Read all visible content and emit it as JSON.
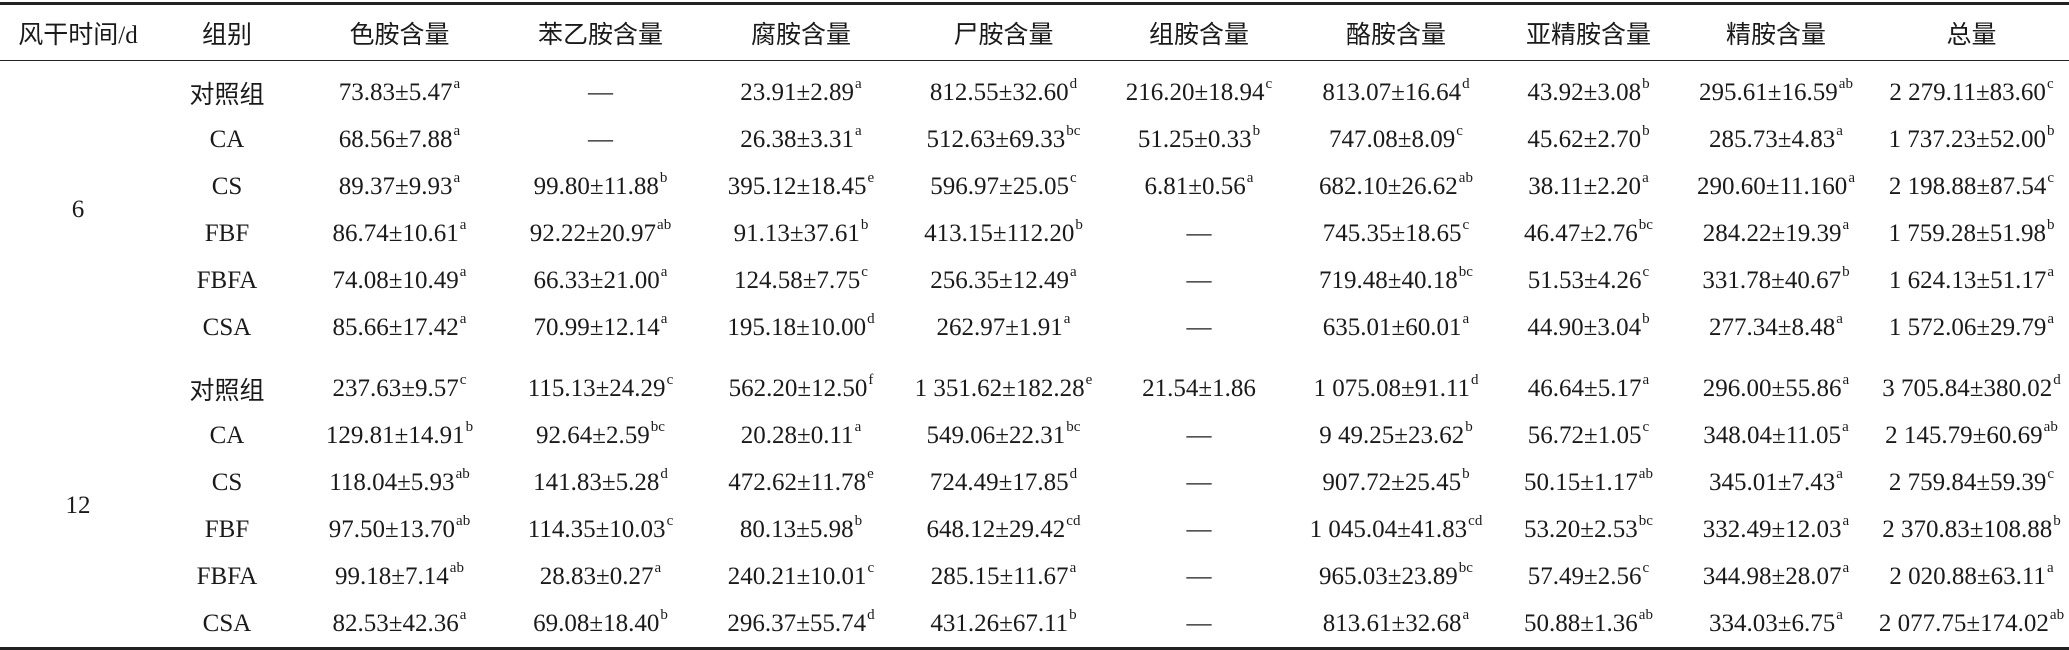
{
  "table": {
    "header": [
      "风干时间/d",
      "组别",
      "色胺含量",
      "苯乙胺含量",
      "腐胺含量",
      "尸胺含量",
      "组胺含量",
      "酪胺含量",
      "亚精胺含量",
      "精胺含量",
      "总量"
    ],
    "groups": [
      {
        "time": "6",
        "rows": [
          {
            "group": "对照组",
            "cells": [
              [
                "73.83±5.47",
                "a"
              ],
              [
                "—"
              ],
              [
                "23.91±2.89",
                "a"
              ],
              [
                "812.55±32.60",
                "d"
              ],
              [
                "216.20±18.94",
                "c"
              ],
              [
                "813.07±16.64",
                "d"
              ],
              [
                "43.92±3.08",
                "b"
              ],
              [
                "295.61±16.59",
                "ab"
              ],
              [
                "2 279.11±83.60",
                "c"
              ]
            ]
          },
          {
            "group": "CA",
            "cells": [
              [
                "68.56±7.88",
                "a"
              ],
              [
                "—"
              ],
              [
                "26.38±3.31",
                "a"
              ],
              [
                "512.63±69.33",
                "bc"
              ],
              [
                "51.25±0.33",
                "b"
              ],
              [
                "747.08±8.09",
                "c"
              ],
              [
                "45.62±2.70",
                "b"
              ],
              [
                "285.73±4.83",
                "a"
              ],
              [
                "1 737.23±52.00",
                "b"
              ]
            ]
          },
          {
            "group": "CS",
            "cells": [
              [
                "89.37±9.93",
                "a"
              ],
              [
                "99.80±11.88",
                "b"
              ],
              [
                "395.12±18.45",
                "e"
              ],
              [
                "596.97±25.05",
                "c"
              ],
              [
                "6.81±0.56",
                "a"
              ],
              [
                "682.10±26.62",
                "ab"
              ],
              [
                "38.11±2.20",
                "a"
              ],
              [
                "290.60±11.160",
                "a"
              ],
              [
                "2 198.88±87.54",
                "c"
              ]
            ]
          },
          {
            "group": "FBF",
            "cells": [
              [
                "86.74±10.61",
                "a"
              ],
              [
                "92.22±20.97",
                "ab"
              ],
              [
                "91.13±37.61",
                "b"
              ],
              [
                "413.15±112.20",
                "b"
              ],
              [
                "—"
              ],
              [
                "745.35±18.65",
                "c"
              ],
              [
                "46.47±2.76",
                "bc"
              ],
              [
                "284.22±19.39",
                "a"
              ],
              [
                "1 759.28±51.98",
                "b"
              ]
            ]
          },
          {
            "group": "FBFA",
            "cells": [
              [
                "74.08±10.49",
                "a"
              ],
              [
                "66.33±21.00",
                "a"
              ],
              [
                "124.58±7.75",
                "c"
              ],
              [
                "256.35±12.49",
                "a"
              ],
              [
                "—"
              ],
              [
                "719.48±40.18",
                "bc"
              ],
              [
                "51.53±4.26",
                "c"
              ],
              [
                "331.78±40.67",
                "b"
              ],
              [
                "1 624.13±51.17",
                "a"
              ]
            ]
          },
          {
            "group": "CSA",
            "cells": [
              [
                "85.66±17.42",
                "a"
              ],
              [
                "70.99±12.14",
                "a"
              ],
              [
                "195.18±10.00",
                "d"
              ],
              [
                "262.97±1.91",
                "a"
              ],
              [
                "—"
              ],
              [
                "635.01±60.01",
                "a"
              ],
              [
                "44.90±3.04",
                "b"
              ],
              [
                "277.34±8.48",
                "a"
              ],
              [
                "1 572.06±29.79",
                "a"
              ]
            ]
          }
        ]
      },
      {
        "time": "12",
        "rows": [
          {
            "group": "对照组",
            "cells": [
              [
                "237.63±9.57",
                "c"
              ],
              [
                "115.13±24.29",
                "c"
              ],
              [
                "562.20±12.50",
                "f"
              ],
              [
                "1 351.62±182.28",
                "e"
              ],
              [
                "21.54±1.86"
              ],
              [
                "1 075.08±91.11",
                "d"
              ],
              [
                "46.64±5.17",
                "a"
              ],
              [
                "296.00±55.86",
                "a"
              ],
              [
                "3 705.84±380.02",
                "d"
              ]
            ]
          },
          {
            "group": "CA",
            "cells": [
              [
                "129.81±14.91",
                "b"
              ],
              [
                "92.64±2.59",
                "bc"
              ],
              [
                "20.28±0.11",
                "a"
              ],
              [
                "549.06±22.31",
                "bc"
              ],
              [
                "—"
              ],
              [
                "9 49.25±23.62",
                "b"
              ],
              [
                "56.72±1.05",
                "c"
              ],
              [
                "348.04±11.05",
                "a"
              ],
              [
                "2 145.79±60.69",
                "ab"
              ]
            ]
          },
          {
            "group": "CS",
            "cells": [
              [
                "118.04±5.93",
                "ab"
              ],
              [
                "141.83±5.28",
                "d"
              ],
              [
                "472.62±11.78",
                "e"
              ],
              [
                "724.49±17.85",
                "d"
              ],
              [
                "—"
              ],
              [
                "907.72±25.45",
                "b"
              ],
              [
                "50.15±1.17",
                "ab"
              ],
              [
                "345.01±7.43",
                "a"
              ],
              [
                "2 759.84±59.39",
                "c"
              ]
            ]
          },
          {
            "group": "FBF",
            "cells": [
              [
                "97.50±13.70",
                "ab"
              ],
              [
                "114.35±10.03",
                "c"
              ],
              [
                "80.13±5.98",
                "b"
              ],
              [
                "648.12±29.42",
                "cd"
              ],
              [
                "—"
              ],
              [
                "1 045.04±41.83",
                "cd"
              ],
              [
                "53.20±2.53",
                "bc"
              ],
              [
                "332.49±12.03",
                "a"
              ],
              [
                "2 370.83±108.88",
                "b"
              ]
            ]
          },
          {
            "group": "FBFA",
            "cells": [
              [
                "99.18±7.14",
                "ab"
              ],
              [
                "28.83±0.27",
                "a"
              ],
              [
                "240.21±10.01",
                "c"
              ],
              [
                "285.15±11.67",
                "a"
              ],
              [
                "—"
              ],
              [
                "965.03±23.89",
                "bc"
              ],
              [
                "57.49±2.56",
                "c"
              ],
              [
                "344.98±28.07",
                "a"
              ],
              [
                "2 020.88±63.11",
                "a"
              ]
            ]
          },
          {
            "group": "CSA",
            "cells": [
              [
                "82.53±42.36",
                "a"
              ],
              [
                "69.08±18.40",
                "b"
              ],
              [
                "296.37±55.74",
                "d"
              ],
              [
                "431.26±67.11",
                "b"
              ],
              [
                "—"
              ],
              [
                "813.61±32.68",
                "a"
              ],
              [
                "50.88±1.36",
                "ab"
              ],
              [
                "334.03±6.75",
                "a"
              ],
              [
                "2 077.75±174.02",
                "ab"
              ]
            ]
          }
        ]
      }
    ]
  }
}
